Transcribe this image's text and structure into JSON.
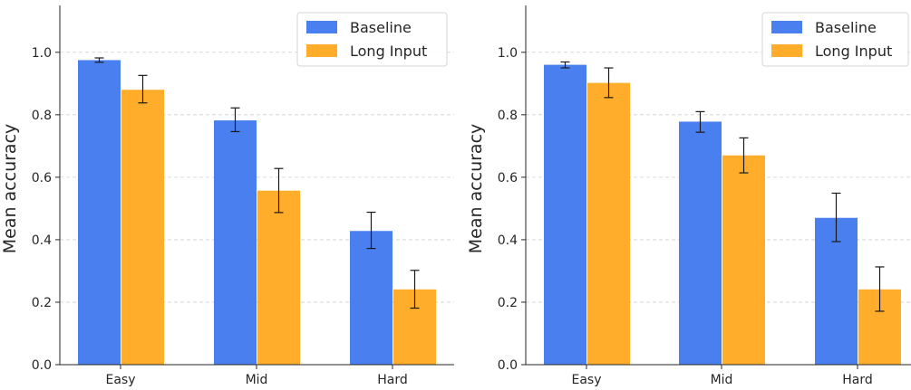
{
  "chart_data": [
    {
      "type": "bar",
      "categories": [
        "Easy",
        "Mid",
        "Hard"
      ],
      "series": [
        {
          "name": "Baseline",
          "color": "#4a7fef",
          "values": [
            0.975,
            0.782,
            0.428
          ],
          "err_low": [
            0.968,
            0.746,
            0.372
          ],
          "err_high": [
            0.982,
            0.822,
            0.488
          ]
        },
        {
          "name": "Long Input",
          "color": "#ffad2a",
          "values": [
            0.88,
            0.557,
            0.241
          ],
          "err_low": [
            0.838,
            0.487,
            0.181
          ],
          "err_high": [
            0.926,
            0.628,
            0.302
          ]
        }
      ],
      "ylabel": "Mean accuracy",
      "ylim": [
        0,
        1.15
      ],
      "yticks": [
        0.0,
        0.2,
        0.4,
        0.6,
        0.8,
        1.0
      ],
      "ytick_labels": [
        "0.0",
        "0.2",
        "0.4",
        "0.6",
        "0.8",
        "1.0"
      ],
      "grid": true,
      "legend_position": "top-right"
    },
    {
      "type": "bar",
      "categories": [
        "Easy",
        "Mid",
        "Hard"
      ],
      "series": [
        {
          "name": "Baseline",
          "color": "#4a7fef",
          "values": [
            0.96,
            0.778,
            0.47
          ],
          "err_low": [
            0.95,
            0.744,
            0.394
          ],
          "err_high": [
            0.969,
            0.81,
            0.549
          ]
        },
        {
          "name": "Long Input",
          "color": "#ffad2a",
          "values": [
            0.902,
            0.67,
            0.241
          ],
          "err_low": [
            0.855,
            0.614,
            0.171
          ],
          "err_high": [
            0.95,
            0.726,
            0.313
          ]
        }
      ],
      "ylabel": "Mean accuracy",
      "ylim": [
        0,
        1.15
      ],
      "yticks": [
        0.0,
        0.2,
        0.4,
        0.6,
        0.8,
        1.0
      ],
      "ytick_labels": [
        "0.0",
        "0.2",
        "0.4",
        "0.6",
        "0.8",
        "1.0"
      ],
      "grid": true,
      "legend_position": "top-right"
    }
  ]
}
